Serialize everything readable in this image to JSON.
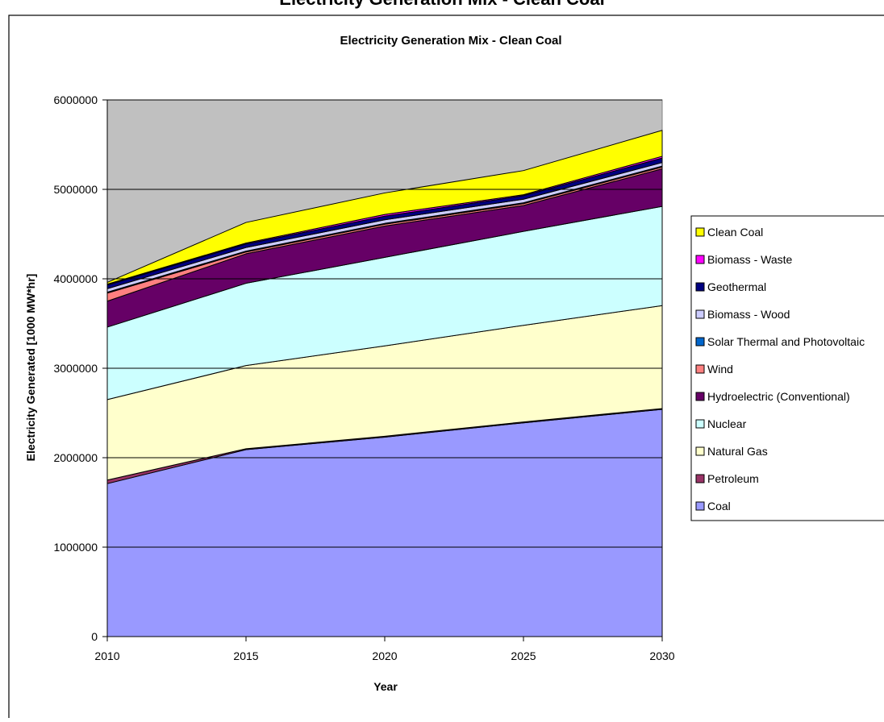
{
  "page": {
    "top_caption": "Electricity Generation Mix - Clean Coal"
  },
  "chart_data": {
    "type": "area",
    "stacked": true,
    "title": "Electricity Generation Mix - Clean Coal",
    "xlabel": "Year",
    "ylabel": "Electricity Generated [1000 MW*hr]",
    "x": [
      2010,
      2015,
      2020,
      2025,
      2030
    ],
    "x_tick_labels": [
      "2010",
      "2015",
      "2020",
      "2025",
      "2030"
    ],
    "ylim": [
      0,
      6000000
    ],
    "y_ticks": [
      0,
      1000000,
      2000000,
      3000000,
      4000000,
      5000000,
      6000000
    ],
    "y_tick_labels": [
      "0",
      "1000000",
      "2000000",
      "3000000",
      "4000000",
      "5000000",
      "6000000"
    ],
    "grid": "horizontal",
    "plot_background": "#c0c0c0",
    "legend_position": "right",
    "series": [
      {
        "name": "Coal",
        "color": "#9999ff",
        "values": [
          1710000,
          2090000,
          2230000,
          2390000,
          2540000
        ]
      },
      {
        "name": "Petroleum",
        "color": "#993366",
        "values": [
          40000,
          10000,
          10000,
          10000,
          10000
        ]
      },
      {
        "name": "Natural Gas",
        "color": "#ffffcc",
        "values": [
          900000,
          930000,
          1010000,
          1080000,
          1150000
        ]
      },
      {
        "name": "Nuclear",
        "color": "#ccffff",
        "values": [
          810000,
          920000,
          990000,
          1050000,
          1110000
        ]
      },
      {
        "name": "Hydroelectric (Conventional)",
        "color": "#660066",
        "values": [
          290000,
          330000,
          350000,
          290000,
          420000
        ]
      },
      {
        "name": "Wind",
        "color": "#ff8080",
        "values": [
          90000,
          20000,
          20000,
          20000,
          20000
        ]
      },
      {
        "name": "Solar Thermal and Photovoltaic",
        "color": "#0066cc",
        "values": [
          10000,
          10000,
          10000,
          10000,
          10000
        ]
      },
      {
        "name": "Biomass - Wood",
        "color": "#ccccff",
        "values": [
          40000,
          40000,
          40000,
          40000,
          40000
        ]
      },
      {
        "name": "Geothermal",
        "color": "#000080",
        "values": [
          40000,
          40000,
          40000,
          40000,
          50000
        ]
      },
      {
        "name": "Biomass - Waste",
        "color": "#ff00ff",
        "values": [
          10000,
          10000,
          20000,
          10000,
          20000
        ]
      },
      {
        "name": "Clean Coal",
        "color": "#ffff00",
        "values": [
          20000,
          230000,
          240000,
          270000,
          290000
        ]
      }
    ]
  }
}
